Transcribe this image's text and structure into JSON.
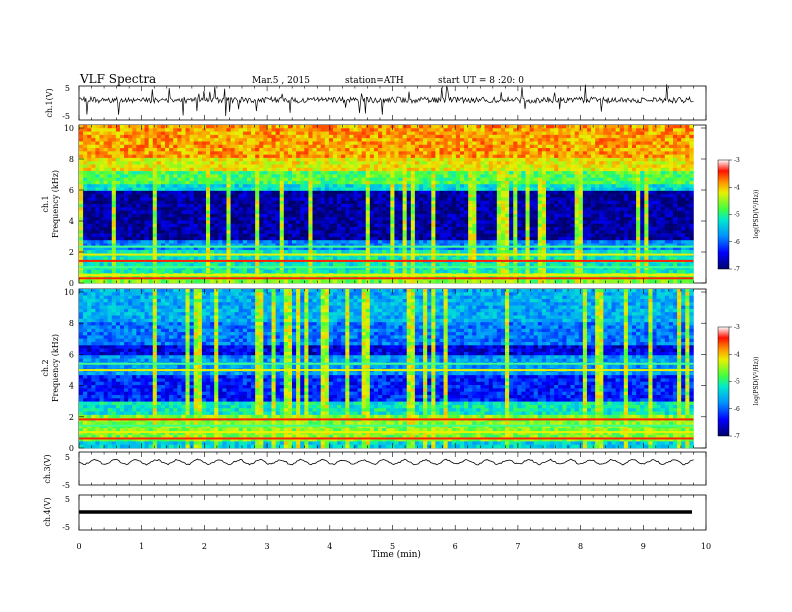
{
  "header": {
    "title": "VLF Spectra",
    "date": "Mar.5 , 2015",
    "station": "station=ATH",
    "start": "start UT = 8 :20: 0"
  },
  "chart_data": [
    {
      "id": "ch1-waveform",
      "type": "line",
      "ylabel": "ch.1(V)",
      "ylim": [
        -5,
        5
      ],
      "yticks": [
        "5",
        "-5"
      ],
      "trace": "noisy broadband waveform near 0 V with frequent impulsive sferic spikes"
    },
    {
      "id": "ch1-spectrogram",
      "type": "heatmap",
      "ylabel_top": "ch.1",
      "ylabel": "Frequency (kHz)",
      "ylim": [
        0,
        10
      ],
      "yticks": [
        "0",
        "2",
        "4",
        "6",
        "8",
        "10"
      ],
      "colorbar": {
        "label": "log(PSD(V²/Hz))",
        "range": [
          -7,
          -3
        ],
        "ticks": [
          "-3",
          "-4",
          "-5",
          "-6",
          "-7"
        ]
      },
      "bands_khz": {
        "dark_low_power": [
          2.8,
          5.8
        ],
        "strong_lines": [
          0.3,
          0.5,
          1.0,
          1.4,
          1.8,
          2.3
        ]
      }
    },
    {
      "id": "ch2-spectrogram",
      "type": "heatmap",
      "ylabel_top": "ch.2",
      "ylabel": "Frequency (kHz)",
      "ylim": [
        0,
        10
      ],
      "yticks": [
        "0",
        "2",
        "4",
        "6",
        "8",
        "10"
      ],
      "colorbar": {
        "label": "log(PSD(V²/Hz))",
        "range": [
          -7,
          -3
        ],
        "ticks": [
          "-3",
          "-4",
          "-5",
          "-6",
          "-7"
        ]
      },
      "bands_khz": {
        "dark_low_power": [
          2.5,
          6.5
        ],
        "strong_lines": [
          0.6,
          1.0,
          1.4,
          1.8,
          4.9,
          5.3
        ]
      }
    },
    {
      "id": "ch3-waveform",
      "type": "line",
      "ylabel": "ch.3(V)",
      "ylim": [
        -5,
        5
      ],
      "yticks": [
        "5",
        "-5"
      ],
      "trace": "quasi-periodic oscillation near 0 V, period about 0.33 min"
    },
    {
      "id": "ch4-waveform",
      "type": "line",
      "ylabel": "ch.4(V)",
      "ylim": [
        -5,
        5
      ],
      "yticks": [
        "5",
        "-5"
      ],
      "trace": "flat thick line at 0 V"
    }
  ],
  "xaxis": {
    "label": "Time (min)",
    "xlim": [
      0,
      10
    ],
    "ticks": [
      "0",
      "1",
      "2",
      "3",
      "4",
      "5",
      "6",
      "7",
      "8",
      "9",
      "10"
    ],
    "data_end_min": 9.8
  }
}
